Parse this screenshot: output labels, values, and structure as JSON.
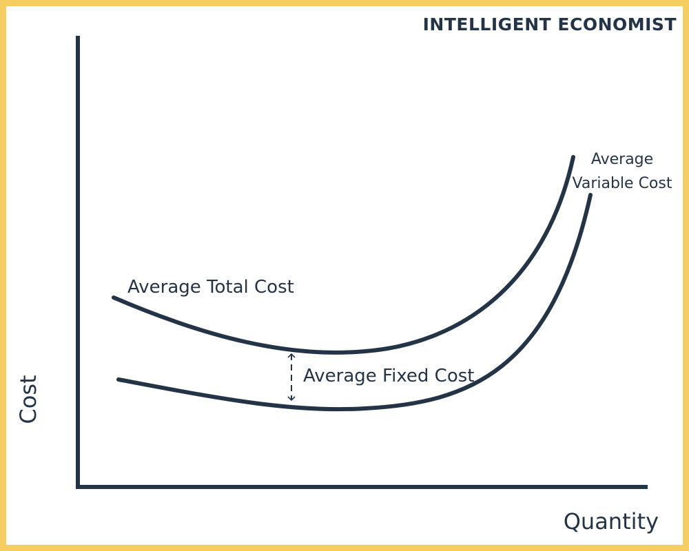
{
  "brand": "INTELLIGENT ECONOMIST",
  "axes": {
    "y_label": "Cost",
    "x_label": "Quantity"
  },
  "curves": {
    "atc_label": "Average Total Cost",
    "avc_label_line1": "Average",
    "avc_label_line2": "Variable Cost",
    "gap_label": "Average Fixed Cost"
  },
  "colors": {
    "border": "#f6cd61",
    "ink": "#243447",
    "background": "#ffffff"
  }
}
